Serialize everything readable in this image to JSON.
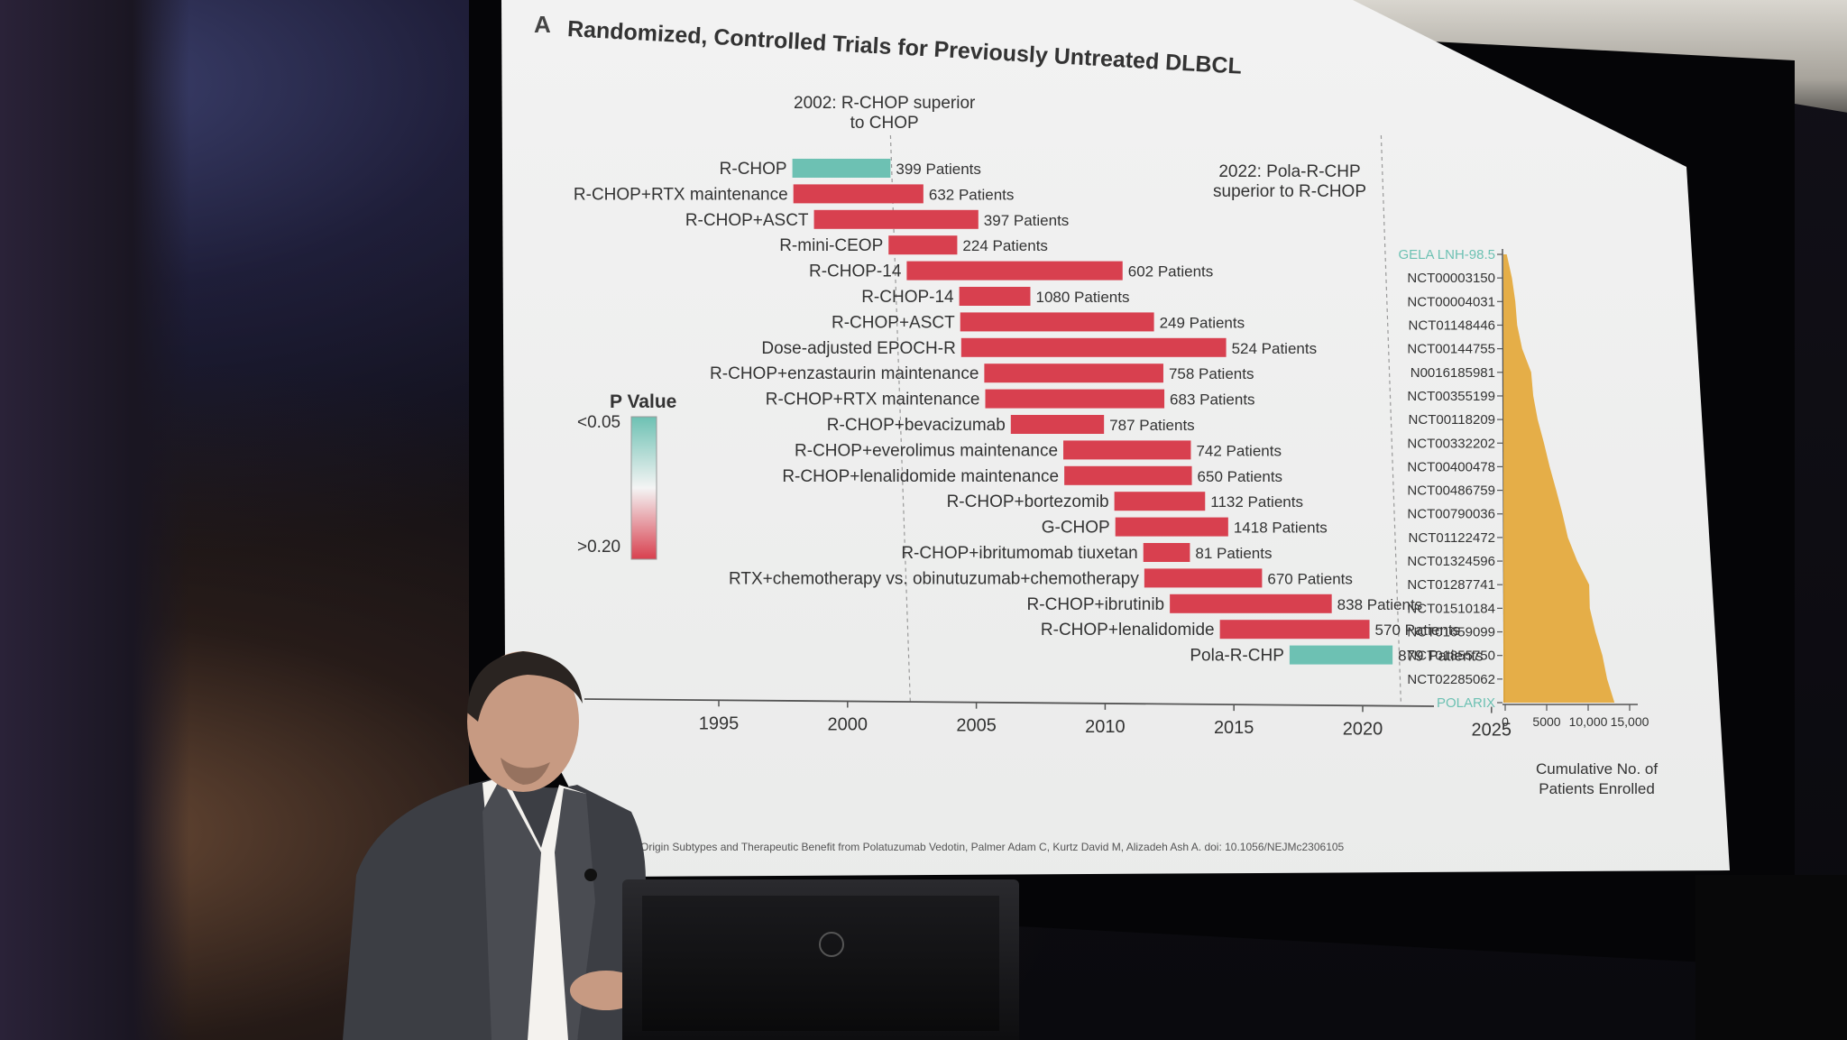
{
  "slide": {
    "panel_letter": "A",
    "title": "Randomized, Controlled Trials for Previously Untreated DLBCL",
    "note_2002": [
      "2002: R-CHOP superior",
      "to CHOP"
    ],
    "note_2022": [
      "2022: Pola-R-CHP",
      "superior to R-CHOP"
    ],
    "legend": {
      "title": "P Value",
      "top": "<0.05",
      "bottom": ">0.20"
    },
    "caption": "Origin Subtypes and Therapeutic Benefit from Polatuzumab Vedotin, Palmer Adam C, Kurtz David M, Alizadeh Ash A. doi: 10.1056/NEJMc2306105",
    "cumulative_label": [
      "Cumulative No. of",
      "Patients Enrolled"
    ]
  },
  "colors": {
    "significant": "#6dc1b3",
    "not_significant": "#d8404f",
    "cumulative": "#e4a83a"
  },
  "chart_data": [
    {
      "type": "bar",
      "title": "Randomized, Controlled Trials for Previously Untreated DLBCL",
      "xlabel": "",
      "x_ticks": [
        "1995",
        "2000",
        "2005",
        "2010",
        "2015",
        "2020",
        "2025"
      ],
      "xlim": [
        1991,
        2025
      ],
      "reference_lines": [
        2002,
        2022
      ],
      "trials": [
        {
          "name": "R-CHOP",
          "start": 1998,
          "end": 2002,
          "patients": "399 Patients",
          "significant": true
        },
        {
          "name": "R-CHOP+RTX maintenance",
          "start": 1998,
          "end": 2003.3,
          "patients": "632 Patients",
          "significant": false
        },
        {
          "name": "R-CHOP+ASCT",
          "start": 1998.8,
          "end": 2005.5,
          "patients": "397 Patients",
          "significant": false
        },
        {
          "name": "R-mini-CEOP",
          "start": 2001.8,
          "end": 2004.6,
          "patients": "224 Patients",
          "significant": false
        },
        {
          "name": "R-CHOP-14",
          "start": 2002.5,
          "end": 2011.3,
          "patients": "602 Patients",
          "significant": false
        },
        {
          "name": "R-CHOP-14",
          "start": 2004.6,
          "end": 2007.5,
          "patients": "1080 Patients",
          "significant": false
        },
        {
          "name": "R-CHOP+ASCT",
          "start": 2004.6,
          "end": 2012.5,
          "patients": "249 Patients",
          "significant": false
        },
        {
          "name": "Dose-adjusted EPOCH-R",
          "start": 2004.6,
          "end": 2015.4,
          "patients": "524 Patients",
          "significant": false
        },
        {
          "name": "R-CHOP+enzastaurin maintenance",
          "start": 2005.5,
          "end": 2012.8,
          "patients": "758 Patients",
          "significant": false
        },
        {
          "name": "R-CHOP+RTX maintenance",
          "start": 2005.5,
          "end": 2012.8,
          "patients": "683 Patients",
          "significant": false
        },
        {
          "name": "R-CHOP+bevacizumab",
          "start": 2006.5,
          "end": 2010.3,
          "patients": "787 Patients",
          "significant": false
        },
        {
          "name": "R-CHOP+everolimus maintenance",
          "start": 2008.6,
          "end": 2013.8,
          "patients": "742 Patients",
          "significant": false
        },
        {
          "name": "R-CHOP+lenalidomide maintenance",
          "start": 2008.6,
          "end": 2013.8,
          "patients": "650 Patients",
          "significant": false
        },
        {
          "name": "R-CHOP+bortezomib",
          "start": 2010.6,
          "end": 2014.3,
          "patients": "1132 Patients",
          "significant": false
        },
        {
          "name": "G-CHOP",
          "start": 2010.6,
          "end": 2015.2,
          "patients": "1418 Patients",
          "significant": false
        },
        {
          "name": "R-CHOP+ibritumomab tiuxetan",
          "start": 2011.7,
          "end": 2013.6,
          "patients": "81 Patients",
          "significant": false
        },
        {
          "name": "RTX+chemotherapy vs. obinutuzumab+chemotherapy",
          "start": 2011.7,
          "end": 2016.5,
          "patients": "670 Patients",
          "significant": false
        },
        {
          "name": "R-CHOP+ibrutinib",
          "start": 2012.7,
          "end": 2019.3,
          "patients": "838 Patients",
          "significant": false
        },
        {
          "name": "R-CHOP+lenalidomide",
          "start": 2014.7,
          "end": 2020.8,
          "patients": "570 Patients",
          "significant": false
        },
        {
          "name": "Pola-R-CHP",
          "start": 2017.5,
          "end": 2021.7,
          "patients": "879 Patients",
          "significant": true
        }
      ]
    },
    {
      "type": "area",
      "xlabel": "Cumulative No. of Patients Enrolled",
      "x_ticks": [
        "0",
        "5000",
        "10,000",
        "15,000"
      ],
      "xlim": [
        0,
        15000
      ],
      "trial_ids": [
        "GELA LNH-98.5",
        "NCT00003150",
        "NCT00004031",
        "NCT01148446",
        "NCT00144755",
        "N0016185981",
        "NCT00355199",
        "NCT00118209",
        "NCT00332202",
        "NCT00400478",
        "NCT00486759",
        "NCT00790036",
        "NCT01122472",
        "NCT01324596",
        "NCT01287741",
        "NCT01510184",
        "NCT01659099",
        "NCT01855750",
        "NCT02285062",
        "POLARIX"
      ],
      "cumulative": [
        399,
        1031,
        1428,
        1652,
        2254,
        3334,
        3583,
        4107,
        4865,
        5548,
        6335,
        7077,
        7727,
        8859,
        10277,
        10358,
        11028,
        11866,
        12436,
        13315
      ]
    }
  ]
}
